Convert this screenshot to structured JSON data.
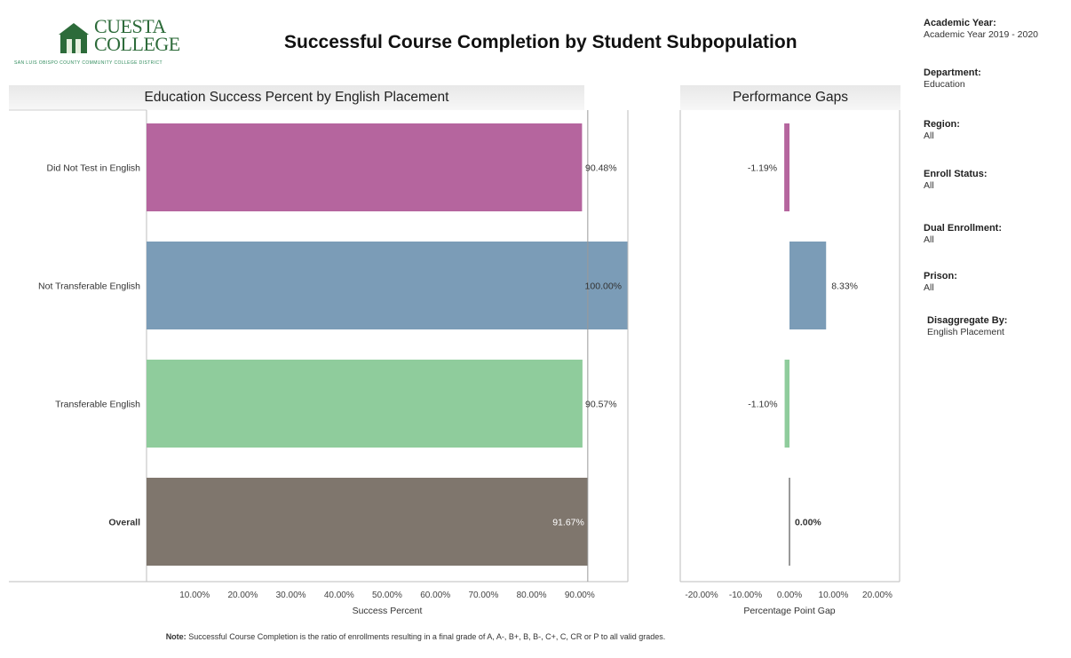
{
  "logo": {
    "line1": "CUESTA",
    "line2": "COLLEGE",
    "tagline": "SAN LUIS OBISPO COUNTY COMMUNITY COLLEGE DISTRICT"
  },
  "title": "Successful Course Completion by Student Subpopulation",
  "filters": [
    {
      "label": "Academic Year:",
      "value": "Academic Year 2019 - 2020"
    },
    {
      "label": "Department:",
      "value": "Education"
    },
    {
      "label": "Region:",
      "value": "All"
    },
    {
      "label": "Enroll Status:",
      "value": "All"
    },
    {
      "label": "Dual Enrollment:",
      "value": "All"
    },
    {
      "label": "Prison:",
      "value": "All"
    },
    {
      "label": "Disaggregate By:",
      "value": "English Placement"
    }
  ],
  "note": {
    "label": "Note:",
    "text": "Successful Course Completion is the ratio of enrollments resulting in a final grade of A, A-, B+, B, B-, C+, C, CR or P to all valid grades."
  },
  "chart_data": [
    {
      "type": "bar",
      "orientation": "horizontal",
      "title": "Education Success Percent by English Placement",
      "xlabel": "Success Percent",
      "categories": [
        "Did Not Test in English",
        "Not Transferable English",
        "Transferable English",
        "Overall"
      ],
      "values": [
        90.48,
        100.0,
        90.57,
        91.67
      ],
      "value_labels": [
        "90.48%",
        "100.00%",
        "90.57%",
        "91.67%"
      ],
      "colors": [
        "#b5659e",
        "#7b9cb7",
        "#8fcc9c",
        "#7f766d"
      ],
      "xlim": [
        0,
        100
      ],
      "xticks": [
        10,
        20,
        30,
        40,
        50,
        60,
        70,
        80,
        90
      ],
      "xtick_labels": [
        "10.00%",
        "20.00%",
        "30.00%",
        "40.00%",
        "50.00%",
        "60.00%",
        "70.00%",
        "80.00%",
        "90.00%"
      ],
      "reference_value": 91.67
    },
    {
      "type": "bar",
      "orientation": "horizontal",
      "title": "Performance Gaps",
      "xlabel": "Percentage Point Gap",
      "categories": [
        "Did Not Test in English",
        "Not Transferable English",
        "Transferable English",
        "Overall"
      ],
      "values": [
        -1.19,
        8.33,
        -1.1,
        0.0
      ],
      "value_labels": [
        "-1.19%",
        "8.33%",
        "-1.10%",
        "0.00%"
      ],
      "colors": [
        "#b5659e",
        "#7b9cb7",
        "#8fcc9c",
        "#555555"
      ],
      "xlim": [
        -25,
        25
      ],
      "xticks": [
        -20,
        -10,
        0,
        10,
        20
      ],
      "xtick_labels": [
        "-20.00%",
        "-10.00%",
        "0.00%",
        "10.00%",
        "20.00%"
      ]
    }
  ]
}
